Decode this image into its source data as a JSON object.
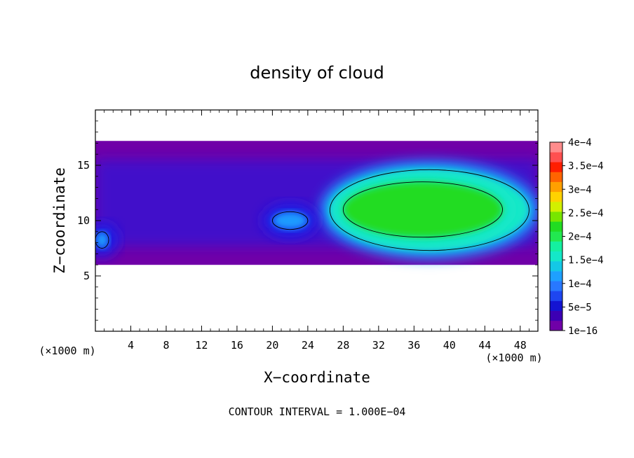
{
  "chart_data": {
    "type": "heatmap",
    "title": "density of cloud",
    "xlabel": "X−coordinate",
    "ylabel": "Z−coordinate",
    "x_unit_label": "(×1000 m)",
    "y_unit_label": "(×1000 m)",
    "xlim": [
      0,
      50
    ],
    "ylim": [
      0,
      20
    ],
    "x_ticks": [
      4,
      8,
      12,
      16,
      20,
      24,
      28,
      32,
      36,
      40,
      44,
      48
    ],
    "y_ticks": [
      5,
      10,
      15
    ],
    "footer": "CONTOUR INTERVAL = 1.000E−04",
    "colorbar": {
      "levels": [
        {
          "label": "1e−16",
          "value": 1e-16,
          "color": "#7000a8"
        },
        {
          "label": "5e−5",
          "value": 5e-05,
          "color": "#1a1ae6"
        },
        {
          "label": "1e−4",
          "value": 0.0001,
          "color": "#1e9bff"
        },
        {
          "label": "1.5e−4",
          "value": 0.00015,
          "color": "#14e8c8"
        },
        {
          "label": "2e−4",
          "value": 0.0002,
          "color": "#22dc22"
        },
        {
          "label": "2.5e−4",
          "value": 0.00025,
          "color": "#d2f000"
        },
        {
          "label": "3e−4",
          "value": 0.0003,
          "color": "#ffa000"
        },
        {
          "label": "3.5e−4",
          "value": 0.00035,
          "color": "#ff1e00"
        },
        {
          "label": "4e−4",
          "value": 0.0004,
          "color": "#ff8c8c"
        }
      ],
      "bands": [
        "#7000a8",
        "#3c00b4",
        "#1414d2",
        "#1e46f0",
        "#2878ff",
        "#1ea0ff",
        "#14c8e6",
        "#14e8c8",
        "#14f0a0",
        "#22e850",
        "#22dc22",
        "#78e600",
        "#d2f000",
        "#ffd200",
        "#ffa000",
        "#ff6400",
        "#ff1e00",
        "#ff5050",
        "#ff8c8c"
      ]
    },
    "regions": [
      {
        "name": "cloud-layer",
        "level": 0,
        "x0": 0,
        "x1": 50,
        "z0": 6.0,
        "z1": 17.2
      },
      {
        "name": "convective-core",
        "level": 3,
        "x0": 26.5,
        "x1": 49,
        "z0": 7.3,
        "z1": 14.6
      },
      {
        "name": "core-max",
        "level": 4,
        "x0": 28,
        "x1": 46,
        "z0": 8.5,
        "z1": 13.5
      },
      {
        "name": "mid-cell",
        "level": 2,
        "x0": 20,
        "x1": 24,
        "z0": 9.2,
        "z1": 10.8
      },
      {
        "name": "left-edge-cell",
        "level": 2,
        "x0": 0,
        "x1": 1.5,
        "z0": 7.5,
        "z1": 9.0
      }
    ]
  }
}
